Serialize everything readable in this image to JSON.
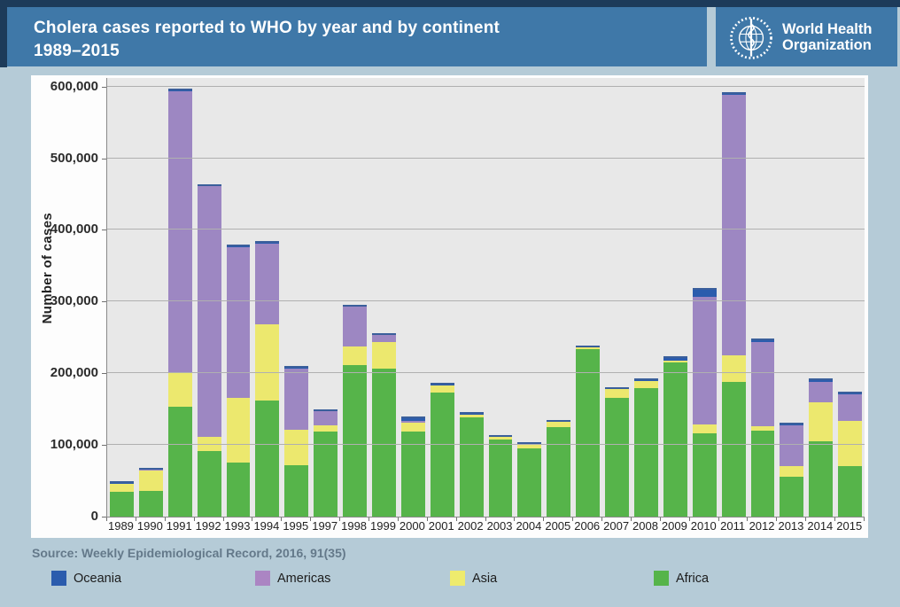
{
  "header": {
    "title_line1": "Cholera cases reported to WHO by year and by continent",
    "title_line2": "1989–2015",
    "logo_line1": "World Health",
    "logo_line2": "Organization"
  },
  "source": "Source: Weekly Epidemiological Record, 2016, 91(35)",
  "legend": {
    "items": [
      {
        "label": "Oceania",
        "color": "#2b5cad"
      },
      {
        "label": "Americas",
        "color": "#ab85c3"
      },
      {
        "label": "Asia",
        "color": "#eeeb6d"
      },
      {
        "label": "Africa",
        "color": "#56b44a"
      }
    ]
  },
  "colors": {
    "frame_navy": "#1d3b5a",
    "header_blue": "#3f78a8",
    "page_background": "#b5cbd7",
    "plot_background": "#e8e8e8",
    "bar_top_edge": "#3a5f9b",
    "oceania": "#2b5cad",
    "americas": "#9d87c2",
    "asia": "#ece86e",
    "africa": "#56b44a"
  },
  "chart_data": {
    "type": "bar",
    "stacked": true,
    "title": "Cholera cases reported to WHO by year and by continent 1989–2015",
    "xlabel": "",
    "ylabel": "Number of cases",
    "ylim": [
      0,
      600000
    ],
    "grid": true,
    "legend_position": "bottom",
    "note": "Year 1996 is absent from the x axis",
    "categories": [
      "1989",
      "1990",
      "1991",
      "1992",
      "1993",
      "1994",
      "1995",
      "1997",
      "1998",
      "1999",
      "2000",
      "2001",
      "2002",
      "2003",
      "2004",
      "2005",
      "2006",
      "2007",
      "2008",
      "2009",
      "2010",
      "2011",
      "2012",
      "2013",
      "2014",
      "2015"
    ],
    "y_ticks": [
      {
        "value": 0,
        "label": "0"
      },
      {
        "value": 100000,
        "label": "100,000"
      },
      {
        "value": 200000,
        "label": "200,000"
      },
      {
        "value": 300000,
        "label": "300,000"
      },
      {
        "value": 400000,
        "label": "400,000"
      },
      {
        "value": 500000,
        "label": "500,000"
      },
      {
        "value": 600000,
        "label": "600,000"
      }
    ],
    "series": [
      {
        "name": "Africa",
        "color": "#56b44a",
        "values": [
          35000,
          36000,
          153000,
          91000,
          76000,
          162000,
          72000,
          119000,
          211000,
          206000,
          119000,
          173000,
          138000,
          108000,
          95000,
          125000,
          234000,
          166000,
          179000,
          215000,
          116000,
          188000,
          120000,
          56000,
          105000,
          71000
        ]
      },
      {
        "name": "Asia",
        "color": "#ece86e",
        "values": [
          10500,
          28000,
          49000,
          20000,
          90000,
          106000,
          49000,
          8000,
          27000,
          38000,
          12000,
          10000,
          4000,
          3500,
          6000,
          7000,
          2500,
          11500,
          10500,
          3000,
          13000,
          37000,
          6000,
          14000,
          55000,
          62000
        ]
      },
      {
        "name": "Americas",
        "color": "#9d87c2",
        "values": [
          500,
          1000,
          391000,
          350000,
          210000,
          113000,
          86000,
          20000,
          55000,
          9000,
          3000,
          500,
          500,
          100,
          100,
          100,
          100,
          100,
          100,
          100,
          178000,
          363000,
          118000,
          58000,
          28000,
          38000
        ]
      },
      {
        "name": "Oceania",
        "color": "#2b5cad",
        "values": [
          600,
          1000,
          1500,
          800,
          800,
          800,
          1000,
          500,
          500,
          500,
          3800,
          700,
          800,
          100,
          100,
          100,
          100,
          100,
          500,
          3000,
          10000,
          2000,
          1500,
          1000,
          2000,
          1500
        ]
      }
    ]
  }
}
